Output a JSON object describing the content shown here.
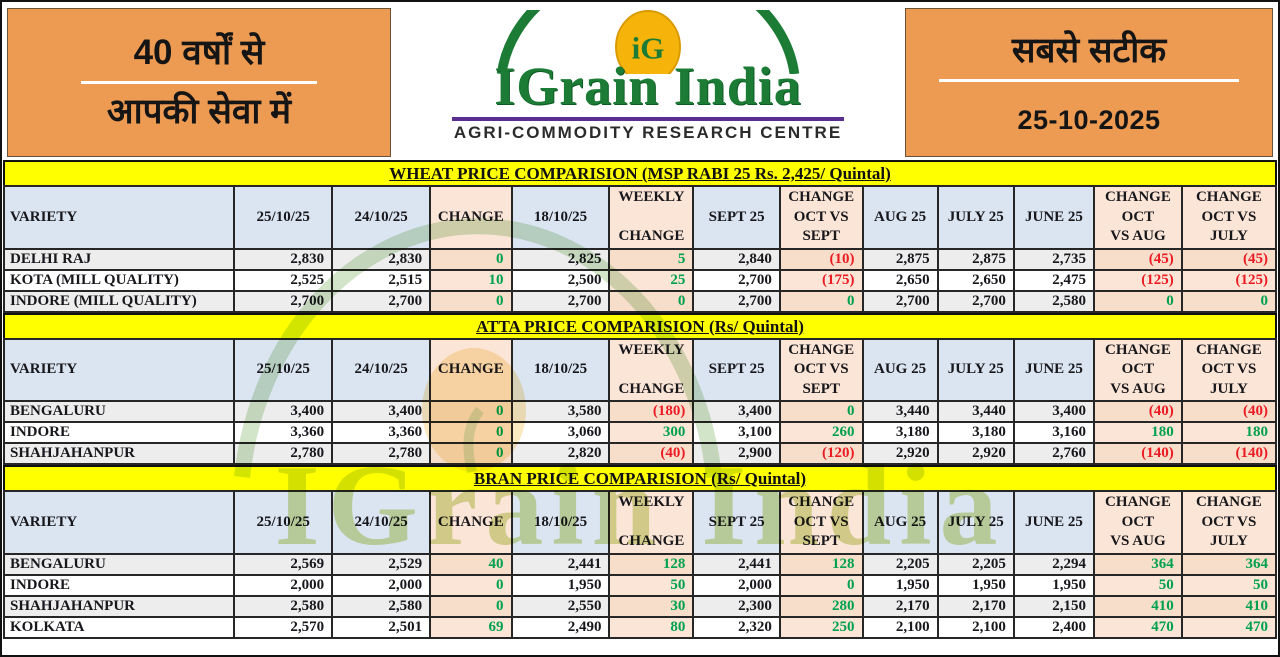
{
  "masthead": {
    "left": {
      "line1": "40 वर्षों से",
      "line2": "आपकी सेवा में"
    },
    "logo": {
      "monogram": "iG",
      "brand": "IGrain India",
      "tagline": "AGRI-COMMODITY RESEARCH CENTRE"
    },
    "right": {
      "line1": "सबसे सटीक",
      "date": "25-10-2025"
    }
  },
  "columns": [
    "VARIETY",
    "25/10/25",
    "24/10/25",
    "CHANGE",
    "18/10/25",
    "WEEKLY\n\nCHANGE",
    "SEPT 25",
    "CHANGE\nOCT VS\nSEPT",
    "AUG 25",
    "JULY 25",
    "JUNE 25",
    "CHANGE\nOCT\nVS AUG",
    "CHANGE\nOCT VS\nJULY"
  ],
  "tables": [
    {
      "id": "wheat",
      "title": "WHEAT PRICE COMPARISION (MSP RABI 25 Rs. 2,425/ Quintal)",
      "rows": [
        {
          "variety": "DELHI RAJ",
          "values": [
            {
              "v": "2,830"
            },
            {
              "v": "2,830"
            },
            {
              "v": "0",
              "c": "pos"
            },
            {
              "v": "2,825"
            },
            {
              "v": "5",
              "c": "pos"
            },
            {
              "v": "2,840"
            },
            {
              "v": "(10)",
              "c": "neg"
            },
            {
              "v": "2,875"
            },
            {
              "v": "2,875"
            },
            {
              "v": "2,735"
            },
            {
              "v": "(45)",
              "c": "neg"
            },
            {
              "v": "(45)",
              "c": "neg"
            }
          ]
        },
        {
          "variety": "KOTA (MILL QUALITY)",
          "values": [
            {
              "v": "2,525"
            },
            {
              "v": "2,515"
            },
            {
              "v": "10",
              "c": "pos"
            },
            {
              "v": "2,500"
            },
            {
              "v": "25",
              "c": "pos"
            },
            {
              "v": "2,700"
            },
            {
              "v": "(175)",
              "c": "neg"
            },
            {
              "v": "2,650"
            },
            {
              "v": "2,650"
            },
            {
              "v": "2,475"
            },
            {
              "v": "(125)",
              "c": "neg"
            },
            {
              "v": "(125)",
              "c": "neg"
            }
          ]
        },
        {
          "variety": "INDORE (MILL QUALITY)",
          "values": [
            {
              "v": "2,700"
            },
            {
              "v": "2,700"
            },
            {
              "v": "0",
              "c": "pos"
            },
            {
              "v": "2,700"
            },
            {
              "v": "0",
              "c": "pos"
            },
            {
              "v": "2,700"
            },
            {
              "v": "0",
              "c": "pos"
            },
            {
              "v": "2,700"
            },
            {
              "v": "2,700"
            },
            {
              "v": "2,580"
            },
            {
              "v": "0",
              "c": "pos"
            },
            {
              "v": "0",
              "c": "pos"
            }
          ]
        }
      ]
    },
    {
      "id": "atta",
      "title": "ATTA PRICE COMPARISION (Rs/ Quintal)",
      "rows": [
        {
          "variety": "BENGALURU",
          "values": [
            {
              "v": "3,400"
            },
            {
              "v": "3,400"
            },
            {
              "v": "0",
              "c": "pos"
            },
            {
              "v": "3,580"
            },
            {
              "v": "(180)",
              "c": "neg"
            },
            {
              "v": "3,400"
            },
            {
              "v": "0",
              "c": "pos"
            },
            {
              "v": "3,440"
            },
            {
              "v": "3,440"
            },
            {
              "v": "3,400"
            },
            {
              "v": "(40)",
              "c": "neg"
            },
            {
              "v": "(40)",
              "c": "neg"
            }
          ]
        },
        {
          "variety": "INDORE",
          "values": [
            {
              "v": "3,360"
            },
            {
              "v": "3,360"
            },
            {
              "v": "0",
              "c": "pos"
            },
            {
              "v": "3,060"
            },
            {
              "v": "300",
              "c": "pos"
            },
            {
              "v": "3,100"
            },
            {
              "v": "260",
              "c": "pos"
            },
            {
              "v": "3,180"
            },
            {
              "v": "3,180"
            },
            {
              "v": "3,160"
            },
            {
              "v": "180",
              "c": "pos"
            },
            {
              "v": "180",
              "c": "pos"
            }
          ]
        },
        {
          "variety": "SHAHJAHANPUR",
          "values": [
            {
              "v": "2,780"
            },
            {
              "v": "2,780"
            },
            {
              "v": "0",
              "c": "pos"
            },
            {
              "v": "2,820"
            },
            {
              "v": "(40)",
              "c": "neg"
            },
            {
              "v": "2,900"
            },
            {
              "v": "(120)",
              "c": "neg"
            },
            {
              "v": "2,920"
            },
            {
              "v": "2,920"
            },
            {
              "v": "2,760"
            },
            {
              "v": "(140)",
              "c": "neg"
            },
            {
              "v": "(140)",
              "c": "neg"
            }
          ]
        }
      ]
    },
    {
      "id": "bran",
      "title": "BRAN PRICE COMPARISION (Rs/ Quintal)",
      "rows": [
        {
          "variety": "BENGALURU",
          "values": [
            {
              "v": "2,569"
            },
            {
              "v": "2,529"
            },
            {
              "v": "40",
              "c": "pos"
            },
            {
              "v": "2,441"
            },
            {
              "v": "128",
              "c": "pos"
            },
            {
              "v": "2,441"
            },
            {
              "v": "128",
              "c": "pos"
            },
            {
              "v": "2,205"
            },
            {
              "v": "2,205"
            },
            {
              "v": "2,294"
            },
            {
              "v": "364",
              "c": "pos"
            },
            {
              "v": "364",
              "c": "pos"
            }
          ]
        },
        {
          "variety": "INDORE",
          "values": [
            {
              "v": "2,000"
            },
            {
              "v": "2,000"
            },
            {
              "v": "0",
              "c": "pos"
            },
            {
              "v": "1,950"
            },
            {
              "v": "50",
              "c": "pos"
            },
            {
              "v": "2,000"
            },
            {
              "v": "0",
              "c": "pos"
            },
            {
              "v": "1,950"
            },
            {
              "v": "1,950"
            },
            {
              "v": "1,950"
            },
            {
              "v": "50",
              "c": "pos"
            },
            {
              "v": "50",
              "c": "pos"
            }
          ]
        },
        {
          "variety": "SHAHJAHANPUR",
          "values": [
            {
              "v": "2,580"
            },
            {
              "v": "2,580"
            },
            {
              "v": "0",
              "c": "pos"
            },
            {
              "v": "2,550"
            },
            {
              "v": "30",
              "c": "pos"
            },
            {
              "v": "2,300"
            },
            {
              "v": "280",
              "c": "pos"
            },
            {
              "v": "2,170"
            },
            {
              "v": "2,170"
            },
            {
              "v": "2,150"
            },
            {
              "v": "410",
              "c": "pos"
            },
            {
              "v": "410",
              "c": "pos"
            }
          ]
        },
        {
          "variety": "KOLKATA",
          "values": [
            {
              "v": "2,570"
            },
            {
              "v": "2,501"
            },
            {
              "v": "69",
              "c": "pos"
            },
            {
              "v": "2,490"
            },
            {
              "v": "80",
              "c": "pos"
            },
            {
              "v": "2,320"
            },
            {
              "v": "250",
              "c": "pos"
            },
            {
              "v": "2,100"
            },
            {
              "v": "2,100"
            },
            {
              "v": "2,400"
            },
            {
              "v": "470",
              "c": "pos"
            },
            {
              "v": "470",
              "c": "pos"
            }
          ]
        }
      ]
    }
  ],
  "watermark": {
    "text": "IGrain India"
  },
  "colors": {
    "banner_orange": "#ED9A52",
    "title_yellow": "#FFFF00",
    "header_blue": "#DBE5F1",
    "change_peach": "#FBE5D6",
    "positive_green": "#00A14E",
    "negative_red": "#EC1C24",
    "brand_green": "#1C7C35",
    "brand_rule_purple": "#5B2D8E"
  }
}
